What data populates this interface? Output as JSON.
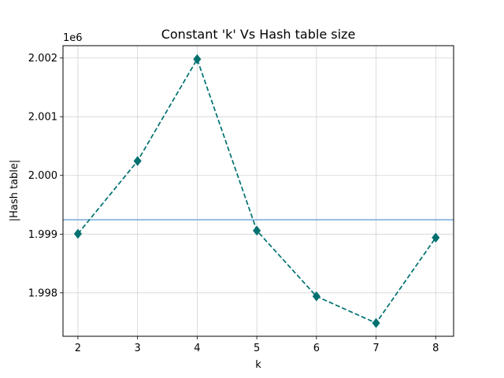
{
  "chart_data": {
    "type": "line",
    "title": "Constant 'k' Vs Hash table size",
    "xlabel": "k",
    "ylabel": "|Hash table|",
    "y_offset_label": "1e6",
    "x": [
      2,
      3,
      4,
      5,
      6,
      7,
      8
    ],
    "series": [
      {
        "values": [
          1999005,
          2000245,
          2001980,
          1999060,
          1997940,
          1997485,
          1998940
        ],
        "color": "#007070",
        "line_style": "dashed",
        "marker": "diamond"
      }
    ],
    "reference_line": {
      "y": 1999245,
      "color": "#7fb0dd"
    },
    "xlim": [
      1.75,
      8.3
    ],
    "ylim": [
      1997260,
      2002210
    ],
    "x_ticks": [
      2,
      3,
      4,
      5,
      6,
      7,
      8
    ],
    "x_tick_labels": [
      "2",
      "3",
      "4",
      "5",
      "6",
      "7",
      "8"
    ],
    "y_ticks": [
      1998000,
      1999000,
      2000000,
      2001000,
      2002000
    ],
    "y_tick_labels": [
      "1.998",
      "1.999",
      "2.000",
      "2.001",
      "2.002"
    ],
    "grid": true
  }
}
